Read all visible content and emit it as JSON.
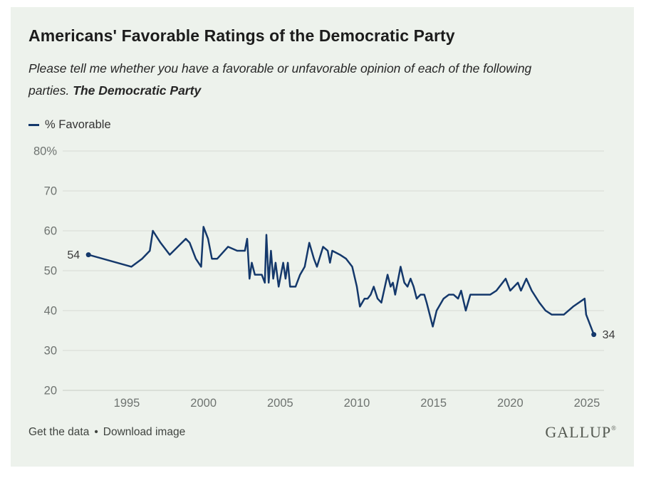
{
  "header": {
    "title": "Americans' Favorable Ratings of the Democratic Party",
    "subtitle_line1": "Please tell me whether you have a favorable or unfavorable opinion of each of the following",
    "subtitle_line2_prefix": "parties. ",
    "subtitle_line2_emphasis": "The Democratic Party"
  },
  "legend": {
    "label": "% Favorable"
  },
  "footer": {
    "get_data_label": "Get the data",
    "separator": "•",
    "download_label": "Download image",
    "logo_text": "GALLUP",
    "logo_mark": "®"
  },
  "colors": {
    "card_background": "#edf2ec",
    "line": "#14386b",
    "grid": "#d6dbd4",
    "axis_bottom": "#c6ccc4",
    "tick_text": "#6e7370",
    "data_label_text": "#3a3a3a"
  },
  "chart_data": {
    "type": "line",
    "title": "Americans' Favorable Ratings of the Democratic Party",
    "series_name": "% Favorable",
    "xlabel": "",
    "ylabel": "% Favorable",
    "xlim": [
      1991.5,
      2026.5
    ],
    "ylim": [
      20,
      80
    ],
    "grid": "horizontal-only",
    "legend_position": "top-left",
    "start_label": "54",
    "end_label": "34",
    "y_ticks": [
      {
        "value": 80,
        "label": "80%"
      },
      {
        "value": 70,
        "label": "70"
      },
      {
        "value": 60,
        "label": "60"
      },
      {
        "value": 50,
        "label": "50"
      },
      {
        "value": 40,
        "label": "40"
      },
      {
        "value": 30,
        "label": "30"
      },
      {
        "value": 20,
        "label": "20"
      }
    ],
    "x_ticks": [
      {
        "value": 1995,
        "label": "1995"
      },
      {
        "value": 2000,
        "label": "2000"
      },
      {
        "value": 2005,
        "label": "2005"
      },
      {
        "value": 2010,
        "label": "2010"
      },
      {
        "value": 2015,
        "label": "2015"
      },
      {
        "value": 2020,
        "label": "2020"
      },
      {
        "value": 2025,
        "label": "2025"
      }
    ],
    "points": [
      [
        1992.5,
        54
      ],
      [
        1995.3,
        51
      ],
      [
        1996.0,
        53
      ],
      [
        1996.5,
        55
      ],
      [
        1996.7,
        60
      ],
      [
        1997.2,
        57
      ],
      [
        1997.8,
        54
      ],
      [
        1998.85,
        58
      ],
      [
        1999.1,
        57
      ],
      [
        1999.5,
        53
      ],
      [
        1999.85,
        51
      ],
      [
        2000.0,
        61
      ],
      [
        2000.3,
        58
      ],
      [
        2000.55,
        53
      ],
      [
        2000.9,
        53
      ],
      [
        2001.6,
        56
      ],
      [
        2002.2,
        55
      ],
      [
        2002.7,
        55
      ],
      [
        2002.85,
        58
      ],
      [
        2003.0,
        48
      ],
      [
        2003.15,
        52
      ],
      [
        2003.35,
        49
      ],
      [
        2003.8,
        49
      ],
      [
        2004.0,
        47
      ],
      [
        2004.1,
        59
      ],
      [
        2004.25,
        47
      ],
      [
        2004.4,
        55
      ],
      [
        2004.55,
        48
      ],
      [
        2004.7,
        52
      ],
      [
        2004.9,
        46
      ],
      [
        2005.2,
        52
      ],
      [
        2005.35,
        48
      ],
      [
        2005.5,
        52
      ],
      [
        2005.65,
        46
      ],
      [
        2006.0,
        46
      ],
      [
        2006.3,
        49
      ],
      [
        2006.6,
        51
      ],
      [
        2006.9,
        57
      ],
      [
        2007.2,
        53
      ],
      [
        2007.4,
        51
      ],
      [
        2007.8,
        56
      ],
      [
        2008.1,
        55
      ],
      [
        2008.25,
        52
      ],
      [
        2008.4,
        55
      ],
      [
        2008.9,
        54
      ],
      [
        2009.3,
        53
      ],
      [
        2009.7,
        51
      ],
      [
        2010.0,
        46
      ],
      [
        2010.2,
        41
      ],
      [
        2010.5,
        43
      ],
      [
        2010.7,
        43
      ],
      [
        2010.9,
        44
      ],
      [
        2011.1,
        46
      ],
      [
        2011.35,
        43
      ],
      [
        2011.6,
        42
      ],
      [
        2012.0,
        49
      ],
      [
        2012.2,
        46
      ],
      [
        2012.35,
        47
      ],
      [
        2012.5,
        44
      ],
      [
        2012.85,
        51
      ],
      [
        2013.1,
        47
      ],
      [
        2013.3,
        46
      ],
      [
        2013.5,
        48
      ],
      [
        2013.7,
        46
      ],
      [
        2013.9,
        43
      ],
      [
        2014.15,
        44
      ],
      [
        2014.4,
        44
      ],
      [
        2014.55,
        42
      ],
      [
        2014.95,
        36
      ],
      [
        2015.2,
        40
      ],
      [
        2015.65,
        43
      ],
      [
        2016.0,
        44
      ],
      [
        2016.3,
        44
      ],
      [
        2016.6,
        43
      ],
      [
        2016.8,
        45
      ],
      [
        2017.1,
        40
      ],
      [
        2017.4,
        44
      ],
      [
        2018.0,
        44
      ],
      [
        2018.7,
        44
      ],
      [
        2019.1,
        45
      ],
      [
        2019.5,
        47
      ],
      [
        2019.7,
        48
      ],
      [
        2020.0,
        45
      ],
      [
        2020.5,
        47
      ],
      [
        2020.7,
        45
      ],
      [
        2021.05,
        48
      ],
      [
        2021.4,
        45
      ],
      [
        2021.9,
        42
      ],
      [
        2022.3,
        40
      ],
      [
        2022.7,
        39
      ],
      [
        2023.1,
        39
      ],
      [
        2023.5,
        39
      ],
      [
        2024.1,
        41
      ],
      [
        2024.85,
        43
      ],
      [
        2024.95,
        39
      ],
      [
        2025.45,
        34
      ]
    ]
  }
}
